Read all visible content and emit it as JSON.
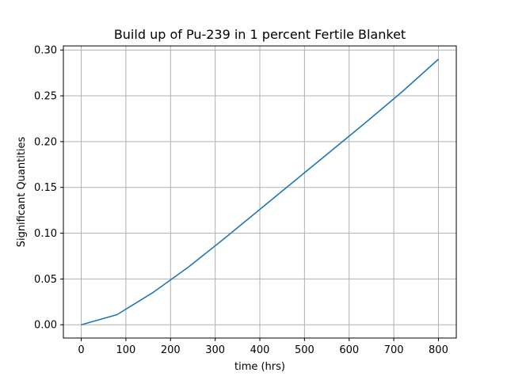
{
  "chart_data": {
    "type": "line",
    "title": "Build up of Pu-239 in 1 percent Fertile Blanket",
    "xlabel": "time (hrs)",
    "ylabel": "Significant Quantities",
    "xlim": [
      -40,
      840
    ],
    "ylim": [
      -0.0145,
      0.3045
    ],
    "grid": true,
    "x_ticks": [
      0,
      100,
      200,
      300,
      400,
      500,
      600,
      700,
      800
    ],
    "x_tick_labels": [
      "0",
      "100",
      "200",
      "300",
      "400",
      "500",
      "600",
      "700",
      "800"
    ],
    "y_ticks": [
      0.0,
      0.05,
      0.1,
      0.15,
      0.2,
      0.25,
      0.3
    ],
    "y_tick_labels": [
      "0.00",
      "0.05",
      "0.10",
      "0.15",
      "0.20",
      "0.25",
      "0.30"
    ],
    "series": [
      {
        "color": "#1f77b4",
        "x": [
          0,
          80,
          160,
          240,
          320,
          400,
          480,
          560,
          640,
          720,
          800
        ],
        "y": [
          0.0,
          0.011,
          0.035,
          0.063,
          0.094,
          0.126,
          0.158,
          0.19,
          0.222,
          0.255,
          0.29
        ]
      }
    ]
  }
}
